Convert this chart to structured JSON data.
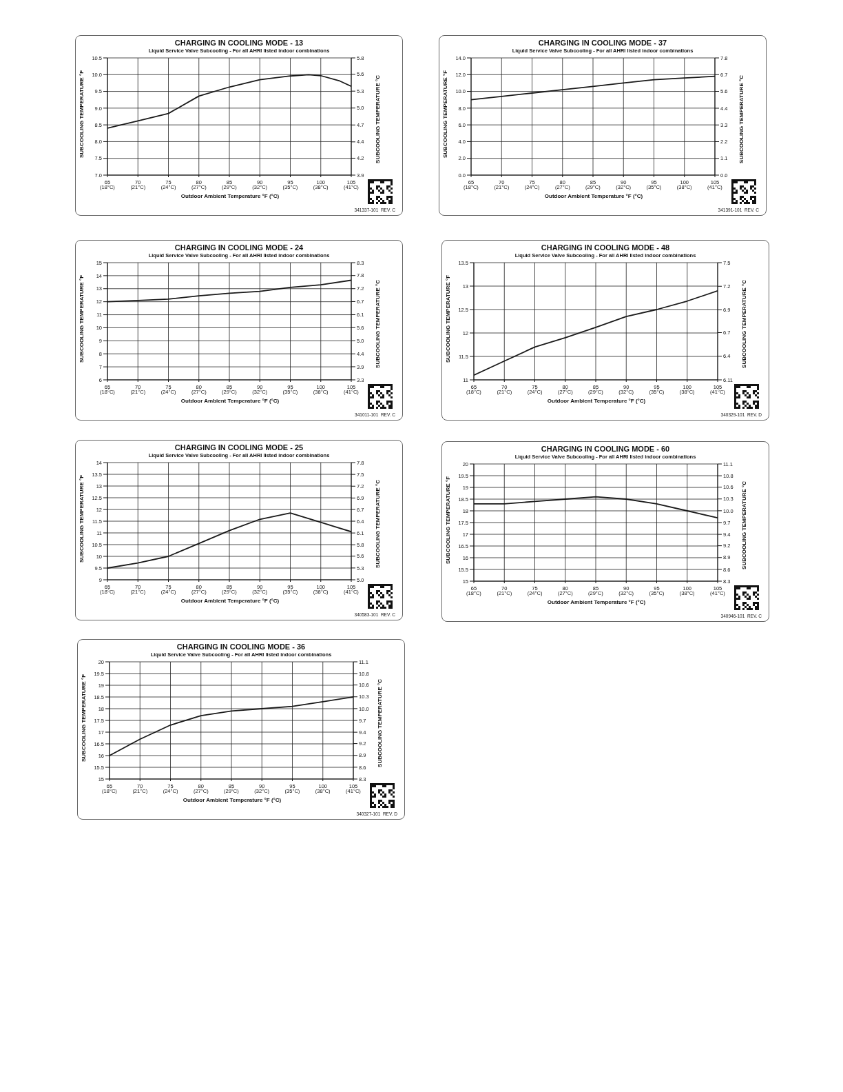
{
  "chart_data": [
    {
      "type": "line",
      "title": "CHARGING IN COOLING MODE - 13",
      "subtitle": "Liquid Service Valve Subcooling - For all AHRI listed indoor combinations",
      "xlabel": "Outdoor Ambient Temperature °F (°C)",
      "ylabel": "SUBCOOLING TEMPERATURE °F",
      "y2label": "SUBCOOLING TEMPERATURE °C",
      "annotations": [
        "341337-101  REV. C"
      ],
      "x": [
        65,
        70,
        75,
        80,
        85,
        90,
        95,
        98,
        100,
        103,
        105
      ],
      "values": [
        8.4,
        8.62,
        8.84,
        9.36,
        9.63,
        9.85,
        9.96,
        10.0,
        9.97,
        9.82,
        9.65
      ],
      "color": "#1a1a1a",
      "xlim": [
        65,
        105
      ],
      "xticks": [
        65,
        70,
        75,
        80,
        85,
        90,
        95,
        100,
        105
      ],
      "x2lim": [
        18.33,
        40.56
      ],
      "x2ticks": [
        {
          "value": 18.33,
          "label": "(18°C)"
        },
        {
          "value": 21.11,
          "label": "(21°C)"
        },
        {
          "value": 23.89,
          "label": "(24°C)"
        },
        {
          "value": 26.67,
          "label": "(27°C)"
        },
        {
          "value": 29.44,
          "label": "(29°C)"
        },
        {
          "value": 32.22,
          "label": "(32°C)"
        },
        {
          "value": 35.0,
          "label": "(35°C)"
        },
        {
          "value": 37.78,
          "label": "(38°C)"
        },
        {
          "value": 40.56,
          "label": "(41°C)"
        }
      ],
      "ylim": [
        7,
        10.5
      ],
      "yticks": [
        {
          "value": 7,
          "label": "7.0"
        },
        7.5,
        {
          "value": 8,
          "label": "8.0"
        },
        8.5,
        {
          "value": 9,
          "label": "9.0"
        },
        9.5,
        {
          "value": 10,
          "label": "10.0"
        },
        10.5
      ],
      "y2lim": [
        3.89,
        5.83
      ],
      "y2ticks": [
        {
          "value": 3.89,
          "label": "3.9"
        },
        {
          "value": 4.17,
          "label": "4.2"
        },
        {
          "value": 4.44,
          "label": "4.4"
        },
        {
          "value": 4.72,
          "label": "4.7"
        },
        {
          "value": 5.0,
          "label": "5.0"
        },
        {
          "value": 5.28,
          "label": "5.3"
        },
        {
          "value": 5.56,
          "label": "5.6"
        },
        {
          "value": 5.83,
          "label": "5.8"
        }
      ],
      "grid": true,
      "legend": false,
      "marker": "none",
      "line_style": "solid"
    },
    {
      "type": "line",
      "title": "CHARGING IN COOLING MODE - 37",
      "subtitle": "Liquid Service Valve Subcooling - For all AHRI listed indoor combinations",
      "xlabel": "Outdoor Ambient Temperature °F (°C)",
      "ylabel": "SUBCOOLING TEMPERATURE °F",
      "y2label": "SUBCOOLING TEMPERATURE °C",
      "annotations": [
        "341391-101  REV. C"
      ],
      "x": [
        65,
        70,
        75,
        80,
        85,
        90,
        95,
        100,
        105
      ],
      "values": [
        9.0,
        9.4,
        9.8,
        10.2,
        10.6,
        11.0,
        11.4,
        11.6,
        11.8
      ],
      "color": "#1a1a1a",
      "xlim": [
        65,
        105
      ],
      "xticks": [
        65,
        70,
        75,
        80,
        85,
        90,
        95,
        100,
        105
      ],
      "x2lim": [
        18.33,
        40.56
      ],
      "x2ticks": [
        {
          "value": 18.33,
          "label": "(18°C)"
        },
        {
          "value": 21.11,
          "label": "(21°C)"
        },
        {
          "value": 23.89,
          "label": "(24°C)"
        },
        {
          "value": 26.67,
          "label": "(27°C)"
        },
        {
          "value": 29.44,
          "label": "(29°C)"
        },
        {
          "value": 32.22,
          "label": "(32°C)"
        },
        {
          "value": 35.0,
          "label": "(35°C)"
        },
        {
          "value": 37.78,
          "label": "(38°C)"
        },
        {
          "value": 40.56,
          "label": "(41°C)"
        }
      ],
      "ylim": [
        0,
        14
      ],
      "yticks": [
        {
          "value": 0,
          "label": "0.0"
        },
        {
          "value": 2,
          "label": "2.0"
        },
        {
          "value": 4,
          "label": "4.0"
        },
        {
          "value": 6,
          "label": "6.0"
        },
        {
          "value": 8,
          "label": "8.0"
        },
        {
          "value": 10,
          "label": "10.0"
        },
        {
          "value": 12,
          "label": "12.0"
        },
        {
          "value": 14,
          "label": "14.0"
        }
      ],
      "y2lim": [
        0,
        7.78
      ],
      "y2ticks": [
        {
          "value": 0,
          "label": "0.0"
        },
        {
          "value": 1.11,
          "label": "1.1"
        },
        {
          "value": 2.22,
          "label": "2.2"
        },
        {
          "value": 3.33,
          "label": "3.3"
        },
        {
          "value": 4.44,
          "label": "4.4"
        },
        {
          "value": 5.56,
          "label": "5.6"
        },
        {
          "value": 6.67,
          "label": "6.7"
        },
        {
          "value": 7.78,
          "label": "7.8"
        }
      ],
      "grid": true,
      "legend": false,
      "marker": "none",
      "line_style": "solid"
    },
    {
      "type": "line",
      "title": "CHARGING IN COOLING MODE - 24",
      "subtitle": "Liquid Service Valve Subcooling - For all AHRI listed indoor combinations",
      "xlabel": "Outdoor Ambient Temperature °F (°C)",
      "ylabel": "SUBCOOLING TEMPERATURE °F",
      "y2label": "SUBCOOLING TEMPERATURE °C",
      "annotations": [
        "341011-101  REV. C"
      ],
      "x": [
        65,
        70,
        75,
        80,
        85,
        90,
        95,
        100,
        105
      ],
      "values": [
        12.0,
        12.1,
        12.2,
        12.45,
        12.65,
        12.8,
        13.1,
        13.3,
        13.65
      ],
      "color": "#1a1a1a",
      "xlim": [
        65,
        105
      ],
      "xticks": [
        65,
        70,
        75,
        80,
        85,
        90,
        95,
        100,
        105
      ],
      "x2lim": [
        18.33,
        40.56
      ],
      "x2ticks": [
        {
          "value": 18.33,
          "label": "(18°C)"
        },
        {
          "value": 21.11,
          "label": "(21°C)"
        },
        {
          "value": 23.89,
          "label": "(24°C)"
        },
        {
          "value": 26.67,
          "label": "(27°C)"
        },
        {
          "value": 29.44,
          "label": "(29°C)"
        },
        {
          "value": 32.22,
          "label": "(32°C)"
        },
        {
          "value": 35.0,
          "label": "(35°C)"
        },
        {
          "value": 37.78,
          "label": "(38°C)"
        },
        {
          "value": 40.56,
          "label": "(41°C)"
        }
      ],
      "ylim": [
        6,
        15
      ],
      "yticks": [
        6,
        7,
        8,
        9,
        10,
        11,
        12,
        13,
        14,
        15
      ],
      "y2lim": [
        3.33,
        8.33
      ],
      "y2ticks": [
        {
          "value": 3.33,
          "label": "3.3"
        },
        {
          "value": 3.89,
          "label": "3.9"
        },
        {
          "value": 4.44,
          "label": "4.4"
        },
        {
          "value": 5.0,
          "label": "5.0"
        },
        {
          "value": 5.56,
          "label": "5.6"
        },
        {
          "value": 6.11,
          "label": "6.1"
        },
        {
          "value": 6.67,
          "label": "6.7"
        },
        {
          "value": 7.22,
          "label": "7.2"
        },
        {
          "value": 7.78,
          "label": "7.8"
        },
        {
          "value": 8.33,
          "label": "8.3"
        }
      ],
      "grid": true,
      "legend": false,
      "marker": "none",
      "line_style": "solid"
    },
    {
      "type": "line",
      "title": "CHARGING IN COOLING MODE - 48",
      "subtitle": "Liquid Service Valve Subcooling - For all AHRI listed indoor combinations",
      "xlabel": "Outdoor Ambient Temperature °F (°C)",
      "ylabel": "SUBCOOLING TEMPERATURE °F",
      "y2label": "SUBCOOLING TEMPERATURE °C",
      "annotations": [
        "340329-101  REV. D"
      ],
      "x": [
        65,
        70,
        75,
        80,
        85,
        90,
        95,
        100,
        105
      ],
      "values": [
        11.1,
        11.4,
        11.7,
        11.9,
        12.12,
        12.35,
        12.5,
        12.68,
        12.9
      ],
      "color": "#1a1a1a",
      "xlim": [
        65,
        105
      ],
      "xticks": [
        65,
        70,
        75,
        80,
        85,
        90,
        95,
        100,
        105
      ],
      "x2lim": [
        18.33,
        40.56
      ],
      "x2ticks": [
        {
          "value": 18.33,
          "label": "(18°C)"
        },
        {
          "value": 21.11,
          "label": "(21°C)"
        },
        {
          "value": 23.89,
          "label": "(24°C)"
        },
        {
          "value": 26.67,
          "label": "(27°C)"
        },
        {
          "value": 29.44,
          "label": "(29°C)"
        },
        {
          "value": 32.22,
          "label": "(32°C)"
        },
        {
          "value": 35.0,
          "label": "(35°C)"
        },
        {
          "value": 37.78,
          "label": "(38°C)"
        },
        {
          "value": 40.56,
          "label": "(41°C)"
        }
      ],
      "ylim": [
        11,
        13.5
      ],
      "yticks": [
        11,
        11.5,
        12,
        12.5,
        13,
        13.5
      ],
      "y2lim": [
        6.11,
        7.5
      ],
      "y2ticks": [
        6.11,
        {
          "value": 6.39,
          "label": "6.4"
        },
        {
          "value": 6.67,
          "label": "6.7"
        },
        {
          "value": 6.94,
          "label": "6.9"
        },
        {
          "value": 7.22,
          "label": "7.2"
        },
        7.5
      ],
      "grid": true,
      "legend": false,
      "marker": "none",
      "line_style": "solid"
    },
    {
      "type": "line",
      "title": "CHARGING IN COOLING MODE - 25",
      "subtitle": "Liquid Service Valve Subcooling - For all AHRI listed indoor combinations",
      "xlabel": "Outdoor Ambient Temperature °F (°C)",
      "ylabel": "SUBCOOLING TEMPERATURE °F",
      "y2label": "SUBCOOLING TEMPERATURE °C",
      "annotations": [
        "340583-101  REV. C"
      ],
      "x": [
        65,
        70,
        75,
        80,
        85,
        90,
        95,
        100,
        105
      ],
      "values": [
        9.5,
        9.72,
        10.0,
        10.55,
        11.1,
        11.58,
        11.85,
        11.45,
        11.05
      ],
      "color": "#1a1a1a",
      "xlim": [
        65,
        105
      ],
      "xticks": [
        65,
        70,
        75,
        80,
        85,
        90,
        95,
        100,
        105
      ],
      "x2lim": [
        18.33,
        40.56
      ],
      "x2ticks": [
        {
          "value": 18.33,
          "label": "(18°C)"
        },
        {
          "value": 21.11,
          "label": "(21°C)"
        },
        {
          "value": 23.89,
          "label": "(24°C)"
        },
        {
          "value": 26.67,
          "label": "(27°C)"
        },
        {
          "value": 29.44,
          "label": "(29°C)"
        },
        {
          "value": 32.22,
          "label": "(32°C)"
        },
        {
          "value": 35.0,
          "label": "(35°C)"
        },
        {
          "value": 37.78,
          "label": "(38°C)"
        },
        {
          "value": 40.56,
          "label": "(41°C)"
        }
      ],
      "ylim": [
        9,
        14
      ],
      "yticks": [
        9,
        9.5,
        10,
        10.5,
        11,
        11.5,
        12,
        12.5,
        13,
        13.5,
        14
      ],
      "y2lim": [
        5.0,
        7.78
      ],
      "y2ticks": [
        {
          "value": 5.0,
          "label": "5.0"
        },
        {
          "value": 5.28,
          "label": "5.3"
        },
        {
          "value": 5.56,
          "label": "5.6"
        },
        {
          "value": 5.83,
          "label": "5.8"
        },
        {
          "value": 6.11,
          "label": "6.1"
        },
        {
          "value": 6.39,
          "label": "6.4"
        },
        {
          "value": 6.67,
          "label": "6.7"
        },
        {
          "value": 6.94,
          "label": "6.9"
        },
        {
          "value": 7.22,
          "label": "7.2"
        },
        {
          "value": 7.5,
          "label": "7.5"
        },
        {
          "value": 7.78,
          "label": "7.8"
        }
      ],
      "grid": true,
      "legend": false,
      "marker": "none",
      "line_style": "solid"
    },
    {
      "type": "line",
      "title": "CHARGING IN COOLING MODE - 60",
      "subtitle": "Liquid Service Valve Subcooling - For all AHRI listed indoor combinations",
      "xlabel": "Outdoor Ambient Temperature °F (°C)",
      "ylabel": "SUBCOOLING TEMPERATURE °F",
      "y2label": "SUBCOOLING TEMPERATURE °C",
      "annotations": [
        "340946-101  REV. C"
      ],
      "x": [
        65,
        70,
        75,
        80,
        85,
        90,
        95,
        100,
        105
      ],
      "values": [
        18.3,
        18.3,
        18.4,
        18.5,
        18.6,
        18.5,
        18.3,
        18.0,
        17.7
      ],
      "color": "#1a1a1a",
      "xlim": [
        65,
        105
      ],
      "xticks": [
        65,
        70,
        75,
        80,
        85,
        90,
        95,
        100,
        105
      ],
      "x2lim": [
        18.33,
        40.56
      ],
      "x2ticks": [
        {
          "value": 18.33,
          "label": "(18°C)"
        },
        {
          "value": 21.11,
          "label": "(21°C)"
        },
        {
          "value": 23.89,
          "label": "(24°C)"
        },
        {
          "value": 26.67,
          "label": "(27°C)"
        },
        {
          "value": 29.44,
          "label": "(29°C)"
        },
        {
          "value": 32.22,
          "label": "(32°C)"
        },
        {
          "value": 35.0,
          "label": "(35°C)"
        },
        {
          "value": 37.78,
          "label": "(38°C)"
        },
        {
          "value": 40.56,
          "label": "(41°C)"
        }
      ],
      "ylim": [
        15,
        20
      ],
      "yticks": [
        15,
        15.5,
        16,
        16.5,
        17,
        17.5,
        18,
        18.5,
        19,
        19.5,
        20
      ],
      "y2lim": [
        8.33,
        11.11
      ],
      "y2ticks": [
        {
          "value": 8.33,
          "label": "8.3"
        },
        {
          "value": 8.61,
          "label": "8.6"
        },
        {
          "value": 8.89,
          "label": "8.9"
        },
        {
          "value": 9.17,
          "label": "9.2"
        },
        {
          "value": 9.44,
          "label": "9.4"
        },
        {
          "value": 9.72,
          "label": "9.7"
        },
        {
          "value": 10.0,
          "label": "10.0"
        },
        {
          "value": 10.28,
          "label": "10.3"
        },
        {
          "value": 10.56,
          "label": "10.6"
        },
        {
          "value": 10.83,
          "label": "10.8"
        },
        {
          "value": 11.11,
          "label": "11.1"
        }
      ],
      "grid": true,
      "legend": false,
      "marker": "none",
      "line_style": "solid"
    },
    {
      "type": "line",
      "title": "CHARGING IN COOLING MODE - 36",
      "subtitle": "Liquid Service Valve Subcooling - For all AHRI listed indoor combinations",
      "xlabel": "Outdoor Ambient Temperature °F (°C)",
      "ylabel": "SUBCOOLING TEMPERATURE °F",
      "y2label": "SUBCOOLING TEMPERATURE °C",
      "annotations": [
        "340327-101  REV. D"
      ],
      "x": [
        65,
        70,
        75,
        80,
        85,
        90,
        95,
        100,
        105
      ],
      "values": [
        16.0,
        16.7,
        17.3,
        17.7,
        17.9,
        18.0,
        18.1,
        18.3,
        18.5
      ],
      "color": "#1a1a1a",
      "xlim": [
        65,
        105
      ],
      "xticks": [
        65,
        70,
        75,
        80,
        85,
        90,
        95,
        100,
        105
      ],
      "x2lim": [
        18.33,
        40.56
      ],
      "x2ticks": [
        {
          "value": 18.33,
          "label": "(18°C)"
        },
        {
          "value": 21.11,
          "label": "(21°C)"
        },
        {
          "value": 23.89,
          "label": "(24°C)"
        },
        {
          "value": 26.67,
          "label": "(27°C)"
        },
        {
          "value": 29.44,
          "label": "(29°C)"
        },
        {
          "value": 32.22,
          "label": "(32°C)"
        },
        {
          "value": 35.0,
          "label": "(35°C)"
        },
        {
          "value": 37.78,
          "label": "(38°C)"
        },
        {
          "value": 40.56,
          "label": "(41°C)"
        }
      ],
      "ylim": [
        15,
        20
      ],
      "yticks": [
        15,
        15.5,
        16,
        16.5,
        17,
        17.5,
        18,
        18.5,
        19,
        19.5,
        20
      ],
      "y2lim": [
        8.33,
        11.11
      ],
      "y2ticks": [
        {
          "value": 8.33,
          "label": "8.3"
        },
        {
          "value": 8.61,
          "label": "8.6"
        },
        {
          "value": 8.89,
          "label": "8.9"
        },
        {
          "value": 9.17,
          "label": "9.2"
        },
        {
          "value": 9.44,
          "label": "9.4"
        },
        {
          "value": 9.72,
          "label": "9.7"
        },
        {
          "value": 10.0,
          "label": "10.0"
        },
        {
          "value": 10.28,
          "label": "10.3"
        },
        {
          "value": 10.56,
          "label": "10.6"
        },
        {
          "value": 10.83,
          "label": "10.8"
        },
        {
          "value": 11.11,
          "label": "11.1"
        }
      ],
      "grid": true,
      "legend": false,
      "marker": "none",
      "line_style": "solid"
    }
  ]
}
